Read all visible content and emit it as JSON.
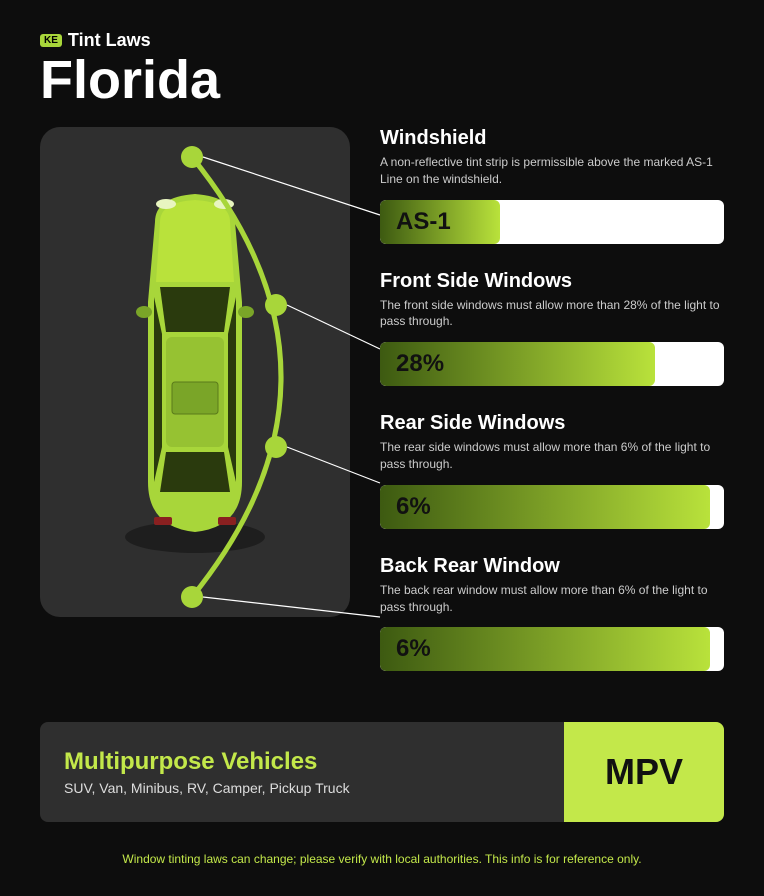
{
  "header": {
    "logo_text": "KE",
    "title_small": "Tint Laws",
    "state": "Florida"
  },
  "colors": {
    "accent_light": "#c3e84a",
    "accent_dark": "#6a9a1f",
    "bar_gradient_start": "#3d5a11",
    "bar_gradient_end": "#b9e23b",
    "panel_bg": "#2f2f2f",
    "page_bg": "#0d0d0d",
    "text_light": "#ffffff",
    "text_muted": "#cccccc",
    "car_body": "#a8d63a",
    "car_dark": "#7aa528"
  },
  "sections": [
    {
      "title": "Windshield",
      "desc": "A non-reflective tint strip is permissible above the marked AS-1 Line on the windshield.",
      "value_label": "AS-1",
      "fill_percent": 35
    },
    {
      "title": "Front Side Windows",
      "desc": "The front side windows must allow more than 28% of the light to pass through.",
      "value_label": "28%",
      "fill_percent": 80
    },
    {
      "title": "Rear Side Windows",
      "desc": "The rear side windows must allow more than 6% of the light to pass through.",
      "value_label": "6%",
      "fill_percent": 96
    },
    {
      "title": "Back Rear Window",
      "desc": "The back rear window must allow more than 6% of the light to pass through.",
      "value_label": "6%",
      "fill_percent": 96
    }
  ],
  "mpv": {
    "title": "Multipurpose Vehicles",
    "subtitle": "SUV, Van, Minibus, RV, Camper, Pickup Truck",
    "badge": "MPV"
  },
  "disclaimer": "Window tinting laws can change; please verify with local authorities. This info is for reference only."
}
